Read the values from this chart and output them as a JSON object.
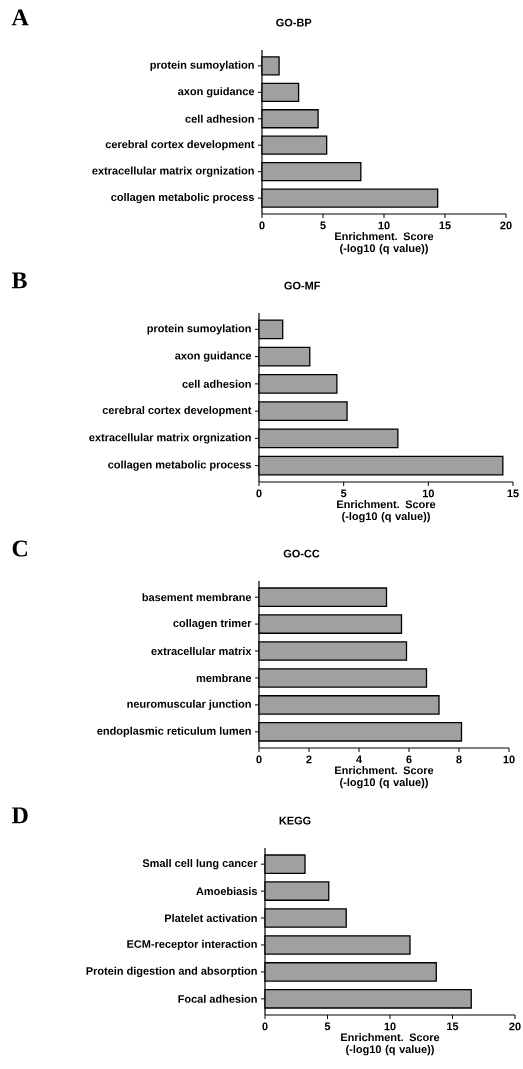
{
  "chart_data": [
    {
      "type": "bar",
      "orientation": "horizontal",
      "title": "GO-BP",
      "annotations": [
        "A"
      ],
      "xlabel": "Enrichment. Score (-log10 (q value))",
      "categories": [
        "protein sumoylation",
        "axon guidance",
        "cell adhesion",
        "cerebral cortex development",
        "extracellular matrix orgnization",
        "collagen metabolic process"
      ],
      "values": [
        1.4,
        3.0,
        4.6,
        5.3,
        8.1,
        14.4
      ],
      "color": "#a0a0a0",
      "xlim": [
        0,
        20
      ],
      "xticks": [
        0,
        5,
        10,
        15,
        20
      ]
    },
    {
      "type": "bar",
      "orientation": "horizontal",
      "title": "GO-MF",
      "annotations": [
        "B"
      ],
      "xlabel": "Enrichment. Score (-log10 (q value))",
      "categories": [
        "protein sumoylation",
        "axon guidance",
        "cell adhesion",
        "cerebral cortex development",
        "extracellular matrix orgnization",
        "collagen metabolic process"
      ],
      "values": [
        1.4,
        3.0,
        4.6,
        5.2,
        8.2,
        14.4
      ],
      "color": "#a0a0a0",
      "xlim": [
        0,
        15
      ],
      "xticks": [
        0,
        5,
        10,
        15
      ]
    },
    {
      "type": "bar",
      "orientation": "horizontal",
      "title": "GO-CC",
      "annotations": [
        "C"
      ],
      "xlabel": "Enrichment. Score (-log10 (q value))",
      "categories": [
        "basement membrane",
        "collagen trimer",
        "extracellular matrix",
        "membrane",
        "neuromuscular junction",
        "endoplasmic reticulum lumen"
      ],
      "values": [
        5.1,
        5.7,
        5.9,
        6.7,
        7.2,
        8.1
      ],
      "color": "#a0a0a0",
      "xlim": [
        0,
        10
      ],
      "xticks": [
        0,
        2,
        4,
        6,
        8,
        10
      ]
    },
    {
      "type": "bar",
      "orientation": "horizontal",
      "title": "KEGG",
      "annotations": [
        "D"
      ],
      "xlabel": "Enrichment. Score (-log10 (q value))",
      "categories": [
        "Small cell lung cancer",
        "Amoebiasis",
        "Platelet activation",
        "ECM-receptor interaction",
        "Protein digestion and absorption",
        "Focal adhesion"
      ],
      "values": [
        3.2,
        5.1,
        6.5,
        11.6,
        13.7,
        16.5
      ],
      "color": "#a0a0a0",
      "xlim": [
        0,
        20
      ],
      "xticks": [
        0,
        5,
        10,
        15,
        20
      ]
    }
  ]
}
